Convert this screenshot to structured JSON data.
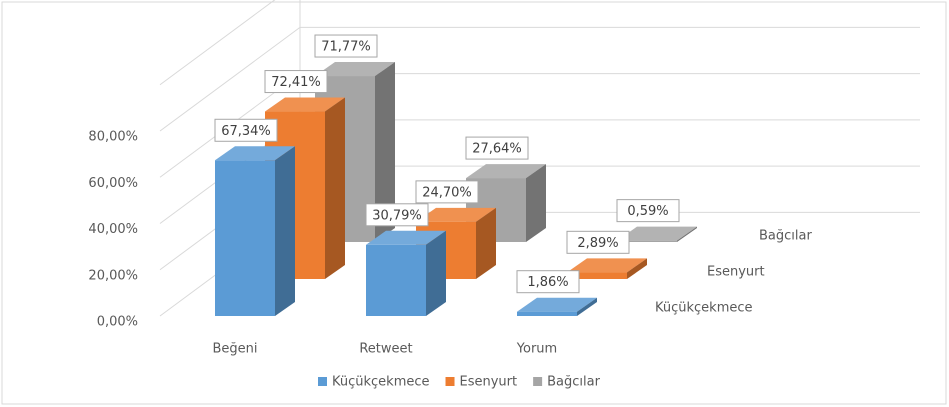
{
  "chart_data": {
    "type": "bar3d",
    "categories": [
      "Beğeni",
      "Retweet",
      "Yorum"
    ],
    "series": [
      {
        "name": "Küçükçekmece",
        "color": "#5b9bd5",
        "values": [
          67.34,
          30.79,
          1.86
        ],
        "value_labels": [
          "67,34%",
          "30,79%",
          "1,86%"
        ]
      },
      {
        "name": "Esenyurt",
        "color": "#ed7d31",
        "values": [
          72.41,
          24.7,
          2.89
        ],
        "value_labels": [
          "72,41%",
          "24,70%",
          "2,89%"
        ]
      },
      {
        "name": "Bağcılar",
        "color": "#a5a5a5",
        "values": [
          71.77,
          27.64,
          0.59
        ],
        "value_labels": [
          "71,77%",
          "27,64%",
          "0,59%"
        ]
      }
    ],
    "ylim": [
      0,
      100
    ],
    "yticks": [
      {
        "value": 0,
        "label": "0,00%"
      },
      {
        "value": 20,
        "label": "20,00%"
      },
      {
        "value": 40,
        "label": "40,00%"
      },
      {
        "value": 60,
        "label": "60,00%"
      },
      {
        "value": 80,
        "label": "80,00%"
      }
    ],
    "grid": true,
    "legend": "bottom"
  }
}
